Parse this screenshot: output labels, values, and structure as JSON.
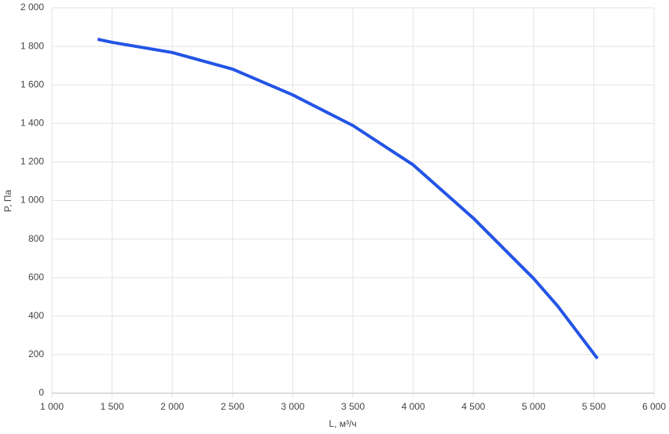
{
  "chart_data": {
    "type": "line",
    "x_label": "L, м³/ч",
    "y_label": "P, Па",
    "x": [
      1380,
      1500,
      2000,
      2500,
      3000,
      3500,
      4000,
      4500,
      5000,
      5200,
      5530
    ],
    "series": [
      {
        "color": "#2354e6",
        "values": [
          1837,
          1821,
          1768,
          1682,
          1548,
          1389,
          1185,
          908,
          595,
          452,
          180
        ]
      }
    ],
    "xlim": [
      1000,
      6000
    ],
    "xticks": [
      {
        "value": 1000,
        "label": "1 000"
      },
      {
        "value": 1500,
        "label": "1 500"
      },
      {
        "value": 2000,
        "label": "2 000"
      },
      {
        "value": 2500,
        "label": "2 500"
      },
      {
        "value": 3000,
        "label": "3 000"
      },
      {
        "value": 3500,
        "label": "3 500"
      },
      {
        "value": 4000,
        "label": "4 000"
      },
      {
        "value": 4500,
        "label": "4 500"
      },
      {
        "value": 5000,
        "label": "5 000"
      },
      {
        "value": 5500,
        "label": "5 500"
      },
      {
        "value": 6000,
        "label": "6 000"
      }
    ],
    "ylim": [
      0,
      2000
    ],
    "yticks": [
      0,
      200,
      400,
      600,
      800,
      {
        "value": 1000,
        "label": "1 000"
      },
      {
        "value": 1200,
        "label": "1 200"
      },
      {
        "value": 1400,
        "label": "1 400"
      },
      {
        "value": 1600,
        "label": "1 600"
      },
      {
        "value": 1800,
        "label": "1 800"
      },
      {
        "value": 2000,
        "label": "2 000"
      }
    ],
    "grid": true
  }
}
